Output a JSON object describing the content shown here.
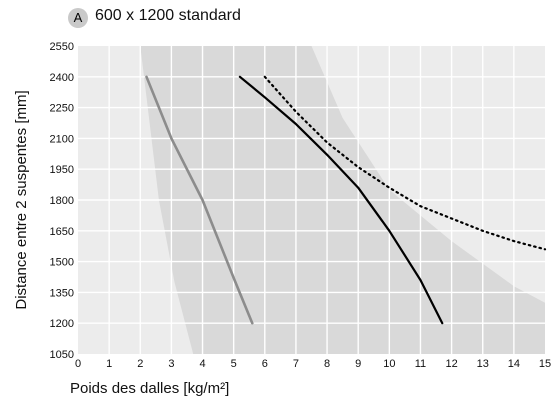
{
  "chart_data": {
    "type": "line",
    "badge": "A",
    "title": "600 x 1200 standard",
    "xlabel": "Poids des dalles [kg/m²]",
    "ylabel": "Distance entre 2 suspentes  [mm]",
    "xlim": [
      0,
      15
    ],
    "ylim": [
      1050,
      2550
    ],
    "x_ticks": [
      0,
      1,
      2,
      3,
      4,
      5,
      6,
      7,
      8,
      9,
      10,
      11,
      12,
      13,
      14,
      15
    ],
    "y_ticks": [
      1050,
      1200,
      1350,
      1500,
      1650,
      1800,
      1950,
      2100,
      2250,
      2400,
      2550
    ],
    "grid": true,
    "colors": {
      "plot_background": "#ececec",
      "band": "#d9d9d9",
      "grey_line": "#8c8c8c",
      "black_line": "#000000",
      "grid": "#ffffff"
    },
    "band": {
      "left_edge": [
        {
          "x": 3.7,
          "y": 1050
        },
        {
          "x": 3.1,
          "y": 1400
        },
        {
          "x": 2.6,
          "y": 1800
        },
        {
          "x": 2.2,
          "y": 2300
        },
        {
          "x": 2.0,
          "y": 2550
        }
      ],
      "right_edge": [
        {
          "x": 4.0,
          "y": 2550
        },
        {
          "x": 7.5,
          "y": 2550
        },
        {
          "x": 8.5,
          "y": 2200
        },
        {
          "x": 10,
          "y": 1850
        },
        {
          "x": 12,
          "y": 1600
        },
        {
          "x": 14,
          "y": 1380
        },
        {
          "x": 15,
          "y": 1300
        },
        {
          "x": 15,
          "y": 1050
        }
      ]
    },
    "series": [
      {
        "style": "solid-grey",
        "points": [
          {
            "x": 2.2,
            "y": 2400
          },
          {
            "x": 3.0,
            "y": 2100
          },
          {
            "x": 4.0,
            "y": 1800
          },
          {
            "x": 5.0,
            "y": 1420
          },
          {
            "x": 5.6,
            "y": 1200
          }
        ]
      },
      {
        "style": "solid-black",
        "points": [
          {
            "x": 5.2,
            "y": 2400
          },
          {
            "x": 6.0,
            "y": 2300
          },
          {
            "x": 7.0,
            "y": 2170
          },
          {
            "x": 8.0,
            "y": 2020
          },
          {
            "x": 9.0,
            "y": 1860
          },
          {
            "x": 10.0,
            "y": 1650
          },
          {
            "x": 11.0,
            "y": 1410
          },
          {
            "x": 11.7,
            "y": 1200
          }
        ]
      },
      {
        "style": "dotted-black",
        "points": [
          {
            "x": 6.0,
            "y": 2400
          },
          {
            "x": 7.0,
            "y": 2230
          },
          {
            "x": 8.0,
            "y": 2080
          },
          {
            "x": 9.0,
            "y": 1960
          },
          {
            "x": 10.0,
            "y": 1860
          },
          {
            "x": 11.0,
            "y": 1770
          },
          {
            "x": 12.0,
            "y": 1710
          },
          {
            "x": 13.0,
            "y": 1650
          },
          {
            "x": 14.0,
            "y": 1600
          },
          {
            "x": 15.0,
            "y": 1560
          }
        ]
      }
    ]
  }
}
